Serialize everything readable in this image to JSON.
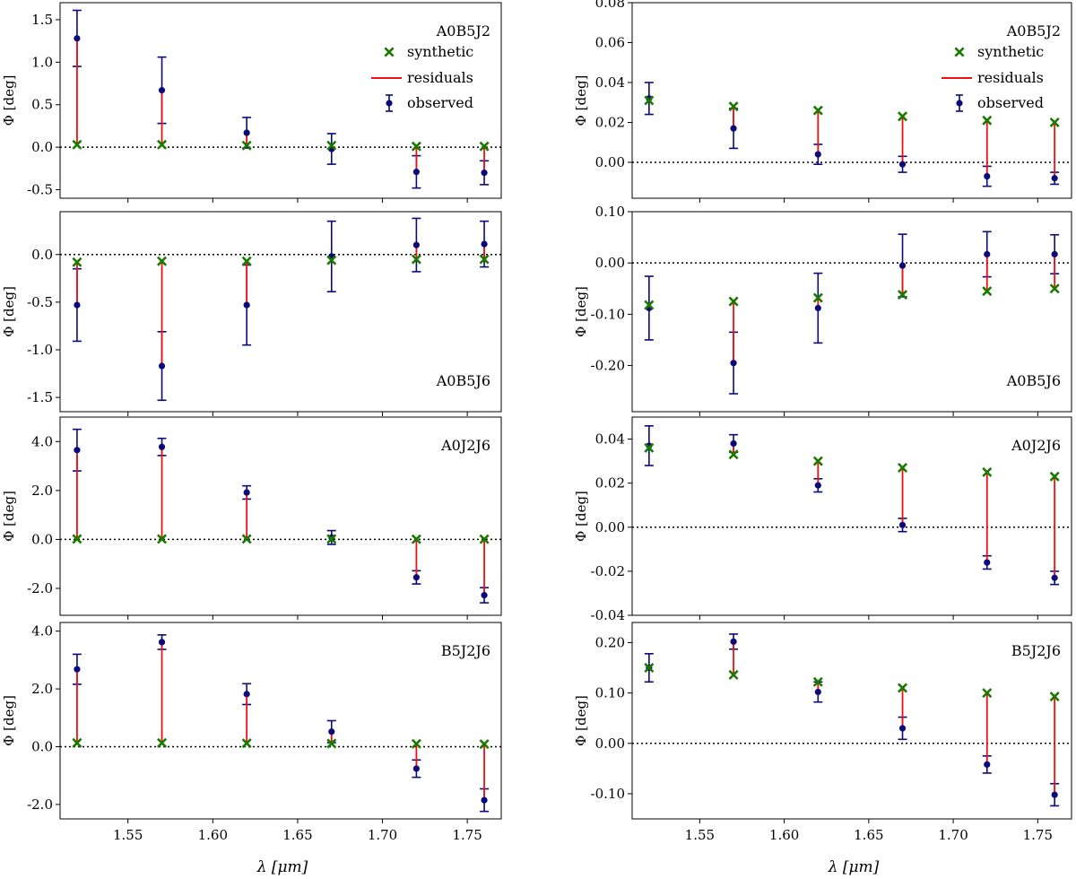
{
  "figure": {
    "ylabel": "Φ [deg]",
    "xlabel": "λ [μm]",
    "legend": {
      "synthetic": "synthetic",
      "residuals": "residuals",
      "observed": "observed"
    },
    "colors": {
      "synthetic": "#1a7a00",
      "residuals": "#ee1111",
      "observed": "#0a0a7a",
      "zero_line": "#000000"
    }
  },
  "chart_data": [
    {
      "type": "scatter",
      "col": 0,
      "row": 0,
      "panel_label": "A0B5J2",
      "legend": "top-right",
      "x": [
        1.52,
        1.57,
        1.62,
        1.67,
        1.72,
        1.76
      ],
      "xlim": [
        1.51,
        1.77
      ],
      "xticks": [
        1.55,
        1.6,
        1.65,
        1.7,
        1.75
      ],
      "xtick_labels": [
        "1.55",
        "1.60",
        "1.65",
        "1.70",
        "1.75"
      ],
      "ylim": [
        -0.6,
        1.7
      ],
      "yticks": [
        -0.5,
        0.0,
        0.5,
        1.0,
        1.5
      ],
      "ytick_labels": [
        "-0.5",
        "0.0",
        "0.5",
        "1.0",
        "1.5"
      ],
      "observed": [
        1.28,
        0.67,
        0.17,
        -0.02,
        -0.29,
        -0.3
      ],
      "error": [
        0.33,
        0.39,
        0.18,
        0.18,
        0.19,
        0.14
      ],
      "synthetic": [
        0.03,
        0.03,
        0.02,
        0.02,
        0.01,
        0.01
      ]
    },
    {
      "type": "scatter",
      "col": 0,
      "row": 1,
      "panel_label": "A0B5J6",
      "x": [
        1.52,
        1.57,
        1.62,
        1.67,
        1.72,
        1.76
      ],
      "xlim": [
        1.51,
        1.77
      ],
      "xticks": [
        1.55,
        1.6,
        1.65,
        1.7,
        1.75
      ],
      "xtick_labels": [
        "1.55",
        "1.60",
        "1.65",
        "1.70",
        "1.75"
      ],
      "ylim": [
        -1.65,
        0.45
      ],
      "yticks": [
        -1.5,
        -1.0,
        -0.5,
        0.0
      ],
      "ytick_labels": [
        "-1.5",
        "-1.0",
        "-0.5",
        "0.0"
      ],
      "observed": [
        -0.53,
        -1.17,
        -0.53,
        -0.02,
        0.1,
        0.11
      ],
      "error": [
        0.38,
        0.36,
        0.42,
        0.37,
        0.28,
        0.24
      ],
      "synthetic": [
        -0.08,
        -0.07,
        -0.07,
        -0.06,
        -0.05,
        -0.05
      ]
    },
    {
      "type": "scatter",
      "col": 0,
      "row": 2,
      "panel_label": "A0J2J6",
      "x": [
        1.52,
        1.57,
        1.62,
        1.67,
        1.72,
        1.76
      ],
      "xlim": [
        1.51,
        1.77
      ],
      "xticks": [
        1.55,
        1.6,
        1.65,
        1.7,
        1.75
      ],
      "xtick_labels": [
        "1.55",
        "1.60",
        "1.65",
        "1.70",
        "1.75"
      ],
      "ylim": [
        -3.1,
        5.0
      ],
      "yticks": [
        -2.0,
        0.0,
        2.0,
        4.0
      ],
      "ytick_labels": [
        "-2.0",
        "0.0",
        "2.0",
        "4.0"
      ],
      "observed": [
        3.65,
        3.78,
        1.92,
        0.08,
        -1.55,
        -2.28
      ],
      "error": [
        0.85,
        0.35,
        0.27,
        0.28,
        0.27,
        0.31
      ],
      "synthetic": [
        0.02,
        0.02,
        0.02,
        0.02,
        0.01,
        0.01
      ]
    },
    {
      "type": "scatter",
      "col": 0,
      "row": 3,
      "panel_label": "B5J2J6",
      "x": [
        1.52,
        1.57,
        1.62,
        1.67,
        1.72,
        1.76
      ],
      "xlim": [
        1.51,
        1.77
      ],
      "xticks": [
        1.55,
        1.6,
        1.65,
        1.7,
        1.75
      ],
      "xtick_labels": [
        "1.55",
        "1.60",
        "1.65",
        "1.70",
        "1.75"
      ],
      "ylim": [
        -2.5,
        4.3
      ],
      "yticks": [
        -2.0,
        0.0,
        2.0,
        4.0
      ],
      "ytick_labels": [
        "-2.0",
        "0.0",
        "2.0",
        "4.0"
      ],
      "observed": [
        2.68,
        3.62,
        1.82,
        0.52,
        -0.76,
        -1.85
      ],
      "error": [
        0.52,
        0.25,
        0.36,
        0.38,
        0.3,
        0.39
      ],
      "synthetic": [
        0.13,
        0.13,
        0.12,
        0.11,
        0.1,
        0.09
      ]
    },
    {
      "type": "scatter",
      "col": 1,
      "row": 0,
      "panel_label": "A0B5J2",
      "legend": "top-right",
      "x": [
        1.52,
        1.57,
        1.62,
        1.67,
        1.72,
        1.76
      ],
      "xlim": [
        1.51,
        1.77
      ],
      "xticks": [
        1.55,
        1.6,
        1.65,
        1.7,
        1.75
      ],
      "xtick_labels": [
        "1.55",
        "1.60",
        "1.65",
        "1.70",
        "1.75"
      ],
      "ylim": [
        -0.018,
        0.08
      ],
      "yticks": [
        0.0,
        0.02,
        0.04,
        0.06,
        0.08
      ],
      "ytick_labels": [
        "0.00",
        "0.02",
        "0.04",
        "0.06",
        "0.08"
      ],
      "observed": [
        0.032,
        0.017,
        0.004,
        -0.001,
        -0.007,
        -0.008
      ],
      "error": [
        0.008,
        0.01,
        0.005,
        0.004,
        0.005,
        0.003
      ],
      "synthetic": [
        0.031,
        0.028,
        0.026,
        0.023,
        0.021,
        0.02
      ]
    },
    {
      "type": "scatter",
      "col": 1,
      "row": 1,
      "panel_label": "A0B5J6",
      "x": [
        1.52,
        1.57,
        1.62,
        1.67,
        1.72,
        1.76
      ],
      "xlim": [
        1.51,
        1.77
      ],
      "xticks": [
        1.55,
        1.6,
        1.65,
        1.7,
        1.75
      ],
      "xtick_labels": [
        "1.55",
        "1.60",
        "1.65",
        "1.70",
        "1.75"
      ],
      "ylim": [
        -0.29,
        0.1
      ],
      "yticks": [
        -0.2,
        -0.1,
        0.0,
        0.1
      ],
      "ytick_labels": [
        "-0.20",
        "-0.10",
        "0.00",
        "0.10"
      ],
      "observed": [
        -0.088,
        -0.195,
        -0.088,
        -0.005,
        0.017,
        0.017
      ],
      "error": [
        0.062,
        0.06,
        0.068,
        0.061,
        0.044,
        0.038
      ],
      "synthetic": [
        -0.082,
        -0.075,
        -0.068,
        -0.062,
        -0.055,
        -0.05
      ]
    },
    {
      "type": "scatter",
      "col": 1,
      "row": 2,
      "panel_label": "A0J2J6",
      "x": [
        1.52,
        1.57,
        1.62,
        1.67,
        1.72,
        1.76
      ],
      "xlim": [
        1.51,
        1.77
      ],
      "xticks": [
        1.55,
        1.6,
        1.65,
        1.7,
        1.75
      ],
      "xtick_labels": [
        "1.55",
        "1.60",
        "1.65",
        "1.70",
        "1.75"
      ],
      "ylim": [
        -0.04,
        0.05
      ],
      "yticks": [
        -0.04,
        -0.02,
        0.0,
        0.02,
        0.04
      ],
      "ytick_labels": [
        "-0.04",
        "-0.02",
        "0.00",
        "0.02",
        "0.04"
      ],
      "observed": [
        0.037,
        0.038,
        0.019,
        0.001,
        -0.016,
        -0.023
      ],
      "error": [
        0.009,
        0.004,
        0.003,
        0.003,
        0.003,
        0.003
      ],
      "synthetic": [
        0.036,
        0.033,
        0.03,
        0.027,
        0.025,
        0.023
      ]
    },
    {
      "type": "scatter",
      "col": 1,
      "row": 3,
      "panel_label": "B5J2J6",
      "x": [
        1.52,
        1.57,
        1.62,
        1.67,
        1.72,
        1.76
      ],
      "xlim": [
        1.51,
        1.77
      ],
      "xticks": [
        1.55,
        1.6,
        1.65,
        1.7,
        1.75
      ],
      "xtick_labels": [
        "1.55",
        "1.60",
        "1.65",
        "1.70",
        "1.75"
      ],
      "ylim": [
        -0.15,
        0.24
      ],
      "yticks": [
        -0.1,
        0.0,
        0.1,
        0.2
      ],
      "ytick_labels": [
        "-0.10",
        "0.00",
        "0.10",
        "0.20"
      ],
      "observed": [
        0.15,
        0.202,
        0.102,
        0.03,
        -0.042,
        -0.102
      ],
      "error": [
        0.028,
        0.015,
        0.02,
        0.022,
        0.017,
        0.022
      ],
      "synthetic": [
        0.15,
        0.136,
        0.122,
        0.11,
        0.1,
        0.093
      ]
    }
  ]
}
